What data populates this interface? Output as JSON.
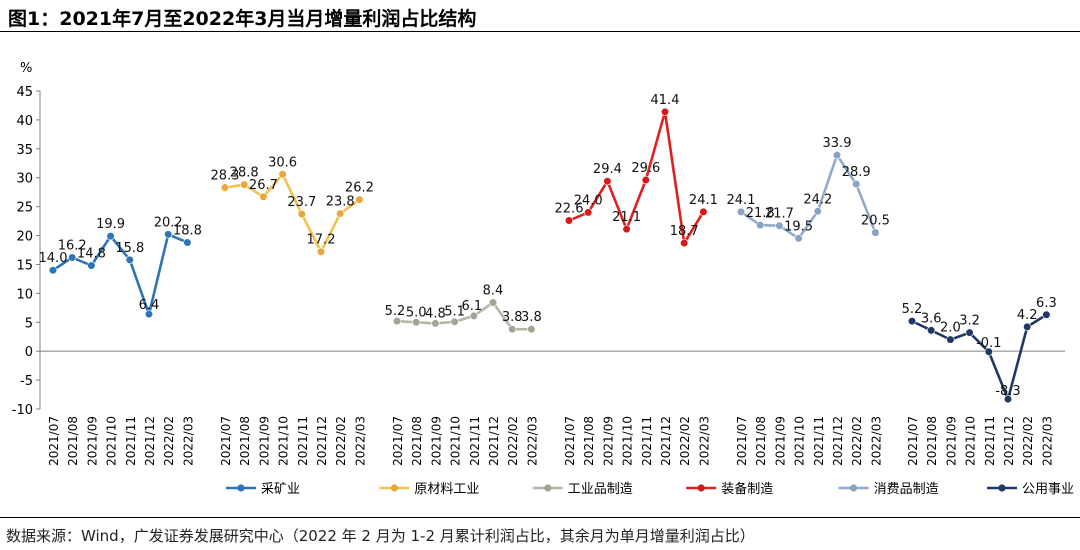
{
  "title": "图1：2021年7月至2022年3月当月增量利润占比结构",
  "source": "数据来源：Wind，广发证券发展研究中心（2022 年 2 月为 1-2 月累计利润占比，其余月为单月增量利润占比）",
  "chart_data": {
    "type": "line",
    "ylabel": "%",
    "ylim": [
      -10,
      45
    ],
    "yticks": [
      45,
      40,
      35,
      30,
      25,
      20,
      15,
      10,
      5,
      0,
      -5,
      -10
    ],
    "categories": [
      "2021/07",
      "2021/08",
      "2021/09",
      "2021/10",
      "2021/11",
      "2021/12",
      "2022/02",
      "2022/03"
    ],
    "legend_position": "bottom",
    "series": [
      {
        "name": "采矿业",
        "color": "#2e75b6",
        "marker": "#2e75b6",
        "values": [
          14.0,
          16.2,
          14.8,
          19.9,
          15.8,
          6.4,
          20.2,
          18.8
        ],
        "labels": [
          "14.0",
          "16.2",
          "14.8",
          "19.9",
          "15.8",
          "6.4",
          "20.2",
          "18.8"
        ]
      },
      {
        "name": "原材料工业",
        "color": "#f2c14e",
        "marker": "#e9a63b",
        "values": [
          28.3,
          28.8,
          26.7,
          30.6,
          23.7,
          17.2,
          23.8,
          26.2
        ],
        "labels": [
          "28.3",
          "28.8",
          "26.7",
          "30.6",
          "23.7",
          "17.2",
          "23.8",
          "26.2"
        ]
      },
      {
        "name": "工业品制造",
        "color": "#b5b5a8",
        "marker": "#a3a396",
        "values": [
          5.2,
          5.0,
          4.8,
          5.1,
          6.1,
          8.4,
          3.8,
          3.8
        ],
        "labels": [
          "5.2",
          "5.0",
          "4.8",
          "5.1",
          "6.1",
          "8.4",
          "3.8",
          "3.8"
        ]
      },
      {
        "name": "装备制造",
        "color": "#e02020",
        "marker": "#d21b1b",
        "values": [
          22.6,
          24.0,
          29.4,
          21.1,
          29.6,
          41.4,
          18.7,
          24.1
        ],
        "labels": [
          "22.6",
          "24.0",
          "29.4",
          "21.1",
          "29.6",
          "41.4",
          "18.7",
          "24.1"
        ]
      },
      {
        "name": "消费品制造",
        "color": "#92a9c8",
        "marker": "#8aa2c2",
        "values": [
          24.1,
          21.8,
          21.7,
          19.5,
          24.2,
          33.9,
          28.9,
          20.5
        ],
        "labels": [
          "24.1",
          "21.8",
          "21.7",
          "19.5",
          "24.2",
          "33.9",
          "28.9",
          "20.5"
        ]
      },
      {
        "name": "公用事业",
        "color": "#1f3864",
        "marker": "#1f3864",
        "values": [
          5.2,
          3.6,
          2.0,
          3.2,
          -0.1,
          -8.3,
          4.2,
          6.3
        ],
        "labels": [
          "5.2",
          "3.6",
          "2.0",
          "3.2",
          "-0.1",
          "-8.3",
          "4.2",
          "6.3"
        ]
      }
    ]
  }
}
